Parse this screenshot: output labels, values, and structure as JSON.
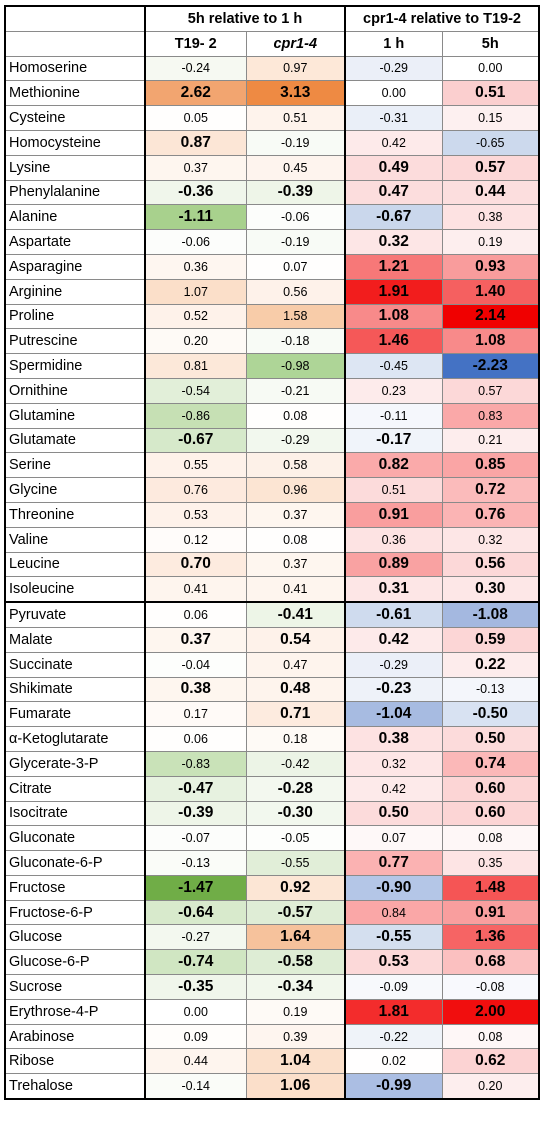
{
  "header": {
    "group1": "5h relative to 1 h",
    "group2": "cpr1-4 relative to T19-2",
    "col1": "T19- 2",
    "col2": "cpr1-4",
    "col3": "1 h",
    "col4": "5h"
  },
  "rows": [
    {
      "name": "Homoserine",
      "values": [
        "-0.24",
        "0.97",
        "-0.29",
        "0.00"
      ],
      "bold": [
        false,
        false,
        false,
        false
      ],
      "colors": [
        "#f6f9f2",
        "#fde8d8",
        "#ebeff8",
        "#ffffff"
      ]
    },
    {
      "name": "Methionine",
      "values": [
        "2.62",
        "3.13",
        "0.00",
        "0.51"
      ],
      "bold": [
        true,
        true,
        false,
        true
      ],
      "colors": [
        "#f2a570",
        "#ee8a43",
        "#ffffff",
        "#fbcfcf"
      ]
    },
    {
      "name": "Cysteine",
      "values": [
        "0.05",
        "0.51",
        "-0.31",
        "0.15"
      ],
      "bold": [
        false,
        false,
        false,
        false
      ],
      "colors": [
        "#fffefd",
        "#fef3ec",
        "#eaeff8",
        "#fdf0f0"
      ]
    },
    {
      "name": "Homocysteine",
      "values": [
        "0.87",
        "-0.19",
        "0.42",
        "-0.65"
      ],
      "bold": [
        true,
        false,
        false,
        false
      ],
      "colors": [
        "#fce6d6",
        "#f8fbf6",
        "#fdeaea",
        "#ccd9ed"
      ]
    },
    {
      "name": "Lysine",
      "values": [
        "0.37",
        "0.45",
        "0.49",
        "0.57"
      ],
      "bold": [
        false,
        false,
        true,
        true
      ],
      "colors": [
        "#fef6ef",
        "#fef4ee",
        "#fcdcdc",
        "#fcd8d8"
      ]
    },
    {
      "name": "Phenylalanine",
      "values": [
        "-0.36",
        "-0.39",
        "0.47",
        "0.44"
      ],
      "bold": [
        true,
        true,
        true,
        true
      ],
      "colors": [
        "#f0f6eb",
        "#eef5e8",
        "#fcdddd",
        "#fcdede"
      ]
    },
    {
      "name": "Alanine",
      "values": [
        "-1.11",
        "-0.06",
        "-0.67",
        "0.38"
      ],
      "bold": [
        true,
        false,
        true,
        false
      ],
      "colors": [
        "#a8d18d",
        "#fcfdfb",
        "#cad7ec",
        "#fde2e2"
      ]
    },
    {
      "name": "Aspartate",
      "values": [
        "-0.06",
        "-0.19",
        "0.32",
        "0.19"
      ],
      "bold": [
        false,
        false,
        true,
        false
      ],
      "colors": [
        "#fcfdfb",
        "#f8fbf6",
        "#fde6e6",
        "#fdeeee"
      ]
    },
    {
      "name": "Asparagine",
      "values": [
        "0.36",
        "0.07",
        "1.21",
        "0.93"
      ],
      "bold": [
        false,
        false,
        true,
        true
      ],
      "colors": [
        "#fef6f0",
        "#fffefd",
        "#f77878",
        "#f99c9c"
      ]
    },
    {
      "name": "Arginine",
      "values": [
        "1.07",
        "0.56",
        "1.91",
        "1.40"
      ],
      "bold": [
        false,
        false,
        true,
        true
      ],
      "colors": [
        "#fbdfc9",
        "#fef2ea",
        "#f21d1d",
        "#f56060"
      ]
    },
    {
      "name": "Proline",
      "values": [
        "0.52",
        "1.58",
        "1.08",
        "2.14"
      ],
      "bold": [
        false,
        false,
        true,
        true
      ],
      "colors": [
        "#fef2ea",
        "#f8cca9",
        "#f88a8a",
        "#f00000"
      ]
    },
    {
      "name": "Putrescine",
      "values": [
        "0.20",
        "-0.18",
        "1.46",
        "1.08"
      ],
      "bold": [
        false,
        false,
        true,
        true
      ],
      "colors": [
        "#fefaf6",
        "#f8fbf6",
        "#f55858",
        "#f88a8a"
      ]
    },
    {
      "name": "Spermidine",
      "values": [
        "0.81",
        "-0.98",
        "-0.45",
        "-2.23"
      ],
      "bold": [
        false,
        false,
        false,
        true
      ],
      "colors": [
        "#fce8d9",
        "#aed597",
        "#dde6f3",
        "#4472c4"
      ]
    },
    {
      "name": "Ornithine",
      "values": [
        "-0.54",
        "-0.21",
        "0.23",
        "0.57"
      ],
      "bold": [
        false,
        false,
        false,
        false
      ],
      "colors": [
        "#e2efd9",
        "#f7faf4",
        "#fdebeb",
        "#fcd8d8"
      ]
    },
    {
      "name": "Glutamine",
      "values": [
        "-0.86",
        "0.08",
        "-0.11",
        "0.83"
      ],
      "bold": [
        false,
        false,
        false,
        false
      ],
      "colors": [
        "#c6e0b4",
        "#fffefd",
        "#f5f7fc",
        "#faa8a8"
      ]
    },
    {
      "name": "Glutamate",
      "values": [
        "-0.67",
        "-0.29",
        "-0.17",
        "0.21"
      ],
      "bold": [
        true,
        false,
        true,
        false
      ],
      "colors": [
        "#d6e9ca",
        "#f2f8ee",
        "#f0f4fa",
        "#fdeded"
      ]
    },
    {
      "name": "Serine",
      "values": [
        "0.55",
        "0.58",
        "0.82",
        "0.85"
      ],
      "bold": [
        false,
        false,
        true,
        true
      ],
      "colors": [
        "#fef2ea",
        "#fdf1e8",
        "#faaaaa",
        "#faa5a5"
      ]
    },
    {
      "name": "Glycine",
      "values": [
        "0.76",
        "0.96",
        "0.51",
        "0.72"
      ],
      "bold": [
        false,
        false,
        false,
        true
      ],
      "colors": [
        "#fdeade",
        "#fce5d3",
        "#fcdbdb",
        "#fbbbbb"
      ]
    },
    {
      "name": "Threonine",
      "values": [
        "0.53",
        "0.37",
        "0.91",
        "0.76"
      ],
      "bold": [
        false,
        false,
        true,
        true
      ],
      "colors": [
        "#fef2ea",
        "#fef6ef",
        "#f99e9e",
        "#fbb4b4"
      ]
    },
    {
      "name": "Valine",
      "values": [
        "0.12",
        "0.08",
        "0.36",
        "0.32"
      ],
      "bold": [
        false,
        false,
        false,
        false
      ],
      "colors": [
        "#fffcfa",
        "#fffefd",
        "#fde3e3",
        "#fde6e6"
      ]
    },
    {
      "name": "Leucine",
      "values": [
        "0.70",
        "0.37",
        "0.89",
        "0.56"
      ],
      "bold": [
        true,
        false,
        true,
        true
      ],
      "colors": [
        "#fdebdf",
        "#fef6ef",
        "#f9a2a2",
        "#fcd8d8"
      ]
    },
    {
      "name": "Isoleucine",
      "values": [
        "0.41",
        "0.41",
        "0.31",
        "0.30"
      ],
      "bold": [
        false,
        false,
        true,
        true
      ],
      "colors": [
        "#fef5ee",
        "#fef5ee",
        "#fde6e6",
        "#fde7e7"
      ]
    },
    {
      "name": "Pyruvate",
      "values": [
        "0.06",
        "-0.41",
        "-0.61",
        "-1.08"
      ],
      "bold": [
        false,
        true,
        true,
        true
      ],
      "colors": [
        "#fffefd",
        "#edf5e7",
        "#cfdbee",
        "#a4b8e0"
      ]
    },
    {
      "name": "Malate",
      "values": [
        "0.37",
        "0.54",
        "0.42",
        "0.59"
      ],
      "bold": [
        true,
        true,
        true,
        true
      ],
      "colors": [
        "#fef6ef",
        "#fef2ea",
        "#fdeaea",
        "#fcd6d6"
      ]
    },
    {
      "name": "Succinate",
      "values": [
        "-0.04",
        "0.47",
        "-0.29",
        "0.22"
      ],
      "bold": [
        false,
        false,
        false,
        true
      ],
      "colors": [
        "#fdfefc",
        "#fef4ed",
        "#ebeff8",
        "#fdecec"
      ]
    },
    {
      "name": "Shikimate",
      "values": [
        "0.38",
        "0.48",
        "-0.23",
        "-0.13"
      ],
      "bold": [
        true,
        true,
        true,
        false
      ],
      "colors": [
        "#fef6ef",
        "#fef4ed",
        "#eef2f9",
        "#f4f6fb"
      ]
    },
    {
      "name": "Fumarate",
      "values": [
        "0.17",
        "0.71",
        "-1.04",
        "-0.50"
      ],
      "bold": [
        false,
        true,
        true,
        true
      ],
      "colors": [
        "#fffaf7",
        "#fdebdf",
        "#a7bbe1",
        "#d8e2f2"
      ]
    },
    {
      "name": "α-Ketoglutarate",
      "values": [
        "0.06",
        "0.18",
        "0.38",
        "0.50"
      ],
      "bold": [
        false,
        false,
        true,
        true
      ],
      "colors": [
        "#fffefd",
        "#fefaf6",
        "#fde2e2",
        "#fcdbdb"
      ]
    },
    {
      "name": "Glycerate-3-P",
      "values": [
        "-0.83",
        "-0.42",
        "0.32",
        "0.74"
      ],
      "bold": [
        false,
        false,
        false,
        true
      ],
      "colors": [
        "#c9e2b8",
        "#ecf4e6",
        "#fde6e6",
        "#fbb8b8"
      ]
    },
    {
      "name": "Citrate",
      "values": [
        "-0.47",
        "-0.28",
        "0.42",
        "0.60"
      ],
      "bold": [
        true,
        true,
        false,
        true
      ],
      "colors": [
        "#e7f2e0",
        "#f3f8ef",
        "#fdeaea",
        "#fcd5d5"
      ]
    },
    {
      "name": "Isocitrate",
      "values": [
        "-0.39",
        "-0.30",
        "0.50",
        "0.60"
      ],
      "bold": [
        true,
        true,
        true,
        true
      ],
      "colors": [
        "#eef5e8",
        "#f2f8ee",
        "#fcdbdb",
        "#fcd5d5"
      ]
    },
    {
      "name": "Gluconate",
      "values": [
        "-0.07",
        "-0.05",
        "0.07",
        "0.08"
      ],
      "bold": [
        false,
        false,
        false,
        false
      ],
      "colors": [
        "#fcfdfb",
        "#fdfefc",
        "#fef8f8",
        "#fef7f7"
      ]
    },
    {
      "name": "Gluconate-6-P",
      "values": [
        "-0.13",
        "-0.55",
        "0.77",
        "0.35"
      ],
      "bold": [
        false,
        false,
        true,
        false
      ],
      "colors": [
        "#fafcf8",
        "#e1eed8",
        "#fbb2b2",
        "#fde4e4"
      ]
    },
    {
      "name": "Fructose",
      "values": [
        "-1.47",
        "0.92",
        "-0.90",
        "1.48"
      ],
      "bold": [
        true,
        true,
        true,
        true
      ],
      "colors": [
        "#70ad47",
        "#fce6d5",
        "#b4c6e7",
        "#f55555"
      ]
    },
    {
      "name": "Fructose-6-P",
      "values": [
        "-0.64",
        "-0.57",
        "0.84",
        "0.91"
      ],
      "bold": [
        true,
        true,
        false,
        true
      ],
      "colors": [
        "#d8eacc",
        "#dfedd6",
        "#faa7a7",
        "#f99e9e"
      ]
    },
    {
      "name": "Glucose",
      "values": [
        "-0.27",
        "1.64",
        "-0.55",
        "1.36"
      ],
      "bold": [
        false,
        true,
        true,
        true
      ],
      "colors": [
        "#f3f8ef",
        "#f6c29c",
        "#d4dfef",
        "#f66464"
      ]
    },
    {
      "name": "Glucose-6-P",
      "values": [
        "-0.74",
        "-0.58",
        "0.53",
        "0.68"
      ],
      "bold": [
        true,
        true,
        true,
        true
      ],
      "colors": [
        "#d0e6c2",
        "#deedd5",
        "#fcd9d9",
        "#fbc0c0"
      ]
    },
    {
      "name": "Sucrose",
      "values": [
        "-0.35",
        "-0.34",
        "-0.09",
        "-0.08"
      ],
      "bold": [
        true,
        true,
        false,
        false
      ],
      "colors": [
        "#f0f6eb",
        "#f1f7ec",
        "#f7f9fc",
        "#f8f9fd"
      ]
    },
    {
      "name": "Erythrose-4-P",
      "values": [
        "0.00",
        "0.19",
        "1.81",
        "2.00"
      ],
      "bold": [
        false,
        false,
        true,
        true
      ],
      "colors": [
        "#ffffff",
        "#fefaf6",
        "#f32c2c",
        "#f10e0e"
      ]
    },
    {
      "name": "Arabinose",
      "values": [
        "0.09",
        "0.39",
        "-0.22",
        "0.08"
      ],
      "bold": [
        false,
        false,
        false,
        false
      ],
      "colors": [
        "#fffdfb",
        "#fef5ef",
        "#eff3f9",
        "#fef7f7"
      ]
    },
    {
      "name": "Ribose",
      "values": [
        "0.44",
        "1.04",
        "0.02",
        "0.62"
      ],
      "bold": [
        false,
        true,
        false,
        true
      ],
      "colors": [
        "#fef5ee",
        "#fbe0cb",
        "#fffefe",
        "#fcd3d3"
      ]
    },
    {
      "name": "Trehalose",
      "values": [
        "-0.14",
        "1.06",
        "-0.99",
        "0.20"
      ],
      "bold": [
        false,
        true,
        true,
        false
      ],
      "colors": [
        "#fafcf8",
        "#fbdfca",
        "#abbee3",
        "#fdeeee"
      ]
    }
  ]
}
